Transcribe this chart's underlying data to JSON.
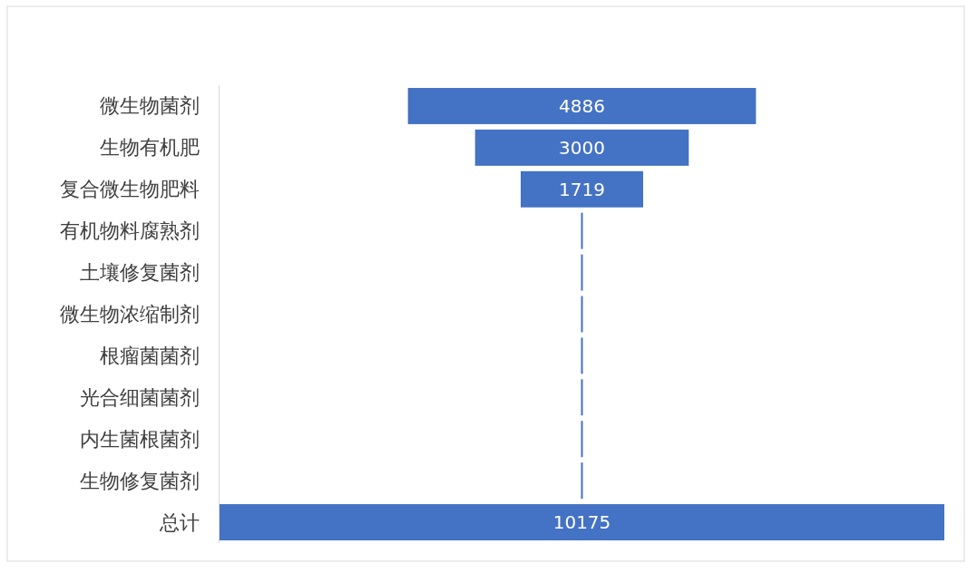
{
  "chart_data": {
    "type": "other",
    "categories": [
      "微生物菌剂",
      "生物有机肥",
      "复合微生物肥料",
      "有机物料腐熟剂",
      "土壤修复菌剂",
      "微生物浓缩制剂",
      "根瘤菌菌剂",
      "光合细菌菌剂",
      "内生菌根菌剂",
      "生物修复菌剂",
      "总计"
    ],
    "values": [
      4886,
      3000,
      1719,
      null,
      null,
      null,
      null,
      null,
      null,
      null,
      10175
    ],
    "value_labels": [
      "4886",
      "3000",
      "1719",
      null,
      null,
      null,
      null,
      null,
      null,
      null,
      "10175"
    ],
    "color": "#4472c4"
  }
}
